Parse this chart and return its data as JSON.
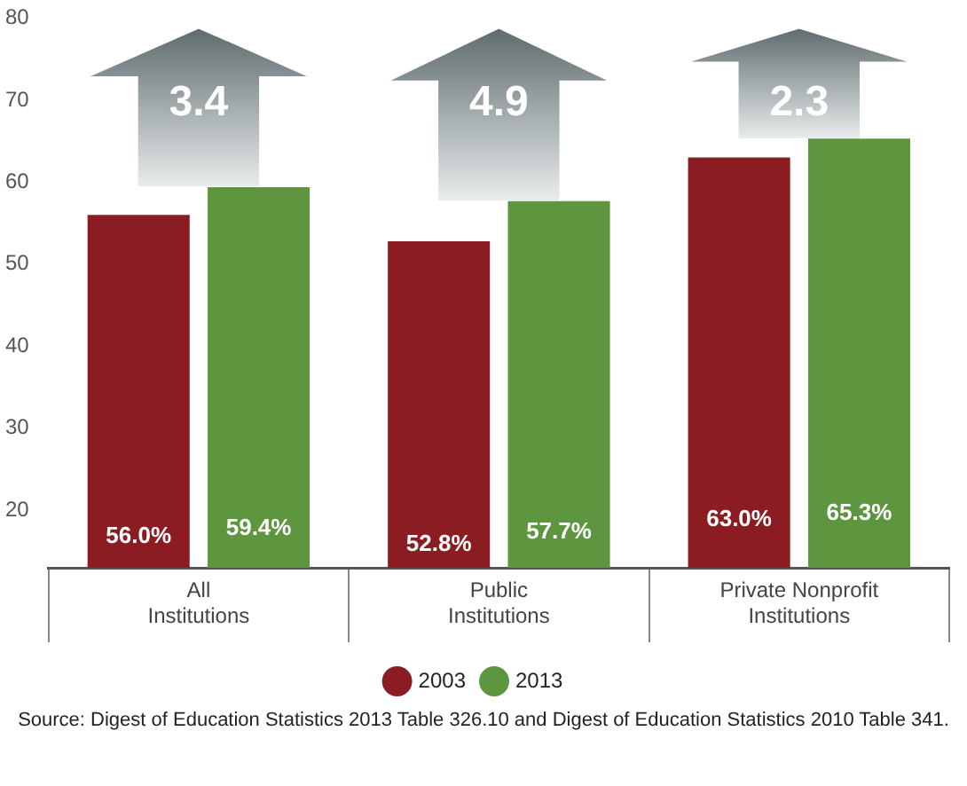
{
  "chart_data": {
    "type": "bar",
    "categories": [
      "All Institutions",
      "Public Institutions",
      "Private Nonprofit Institutions"
    ],
    "series": [
      {
        "name": "2003",
        "color": "#8b1c22",
        "values": [
          56.0,
          52.8,
          63.0
        ],
        "value_labels": [
          "56.0%",
          "52.8%",
          "63.0%"
        ]
      },
      {
        "name": "2013",
        "color": "#5e9640",
        "values": [
          59.4,
          57.7,
          65.3
        ],
        "value_labels": [
          "59.4%",
          "57.7%",
          "65.3%"
        ]
      }
    ],
    "ylim": [
      13,
      80
    ],
    "yticks": [
      20,
      30,
      40,
      50,
      60,
      70,
      80
    ],
    "grid": false,
    "legend": "bottom",
    "annotations": [
      "3.4",
      "4.9",
      "2.3",
      "Source: Digest of Education Statistics 2013 Table 326.10 and Digest of Education Statistics 2010 Table 341."
    ]
  }
}
